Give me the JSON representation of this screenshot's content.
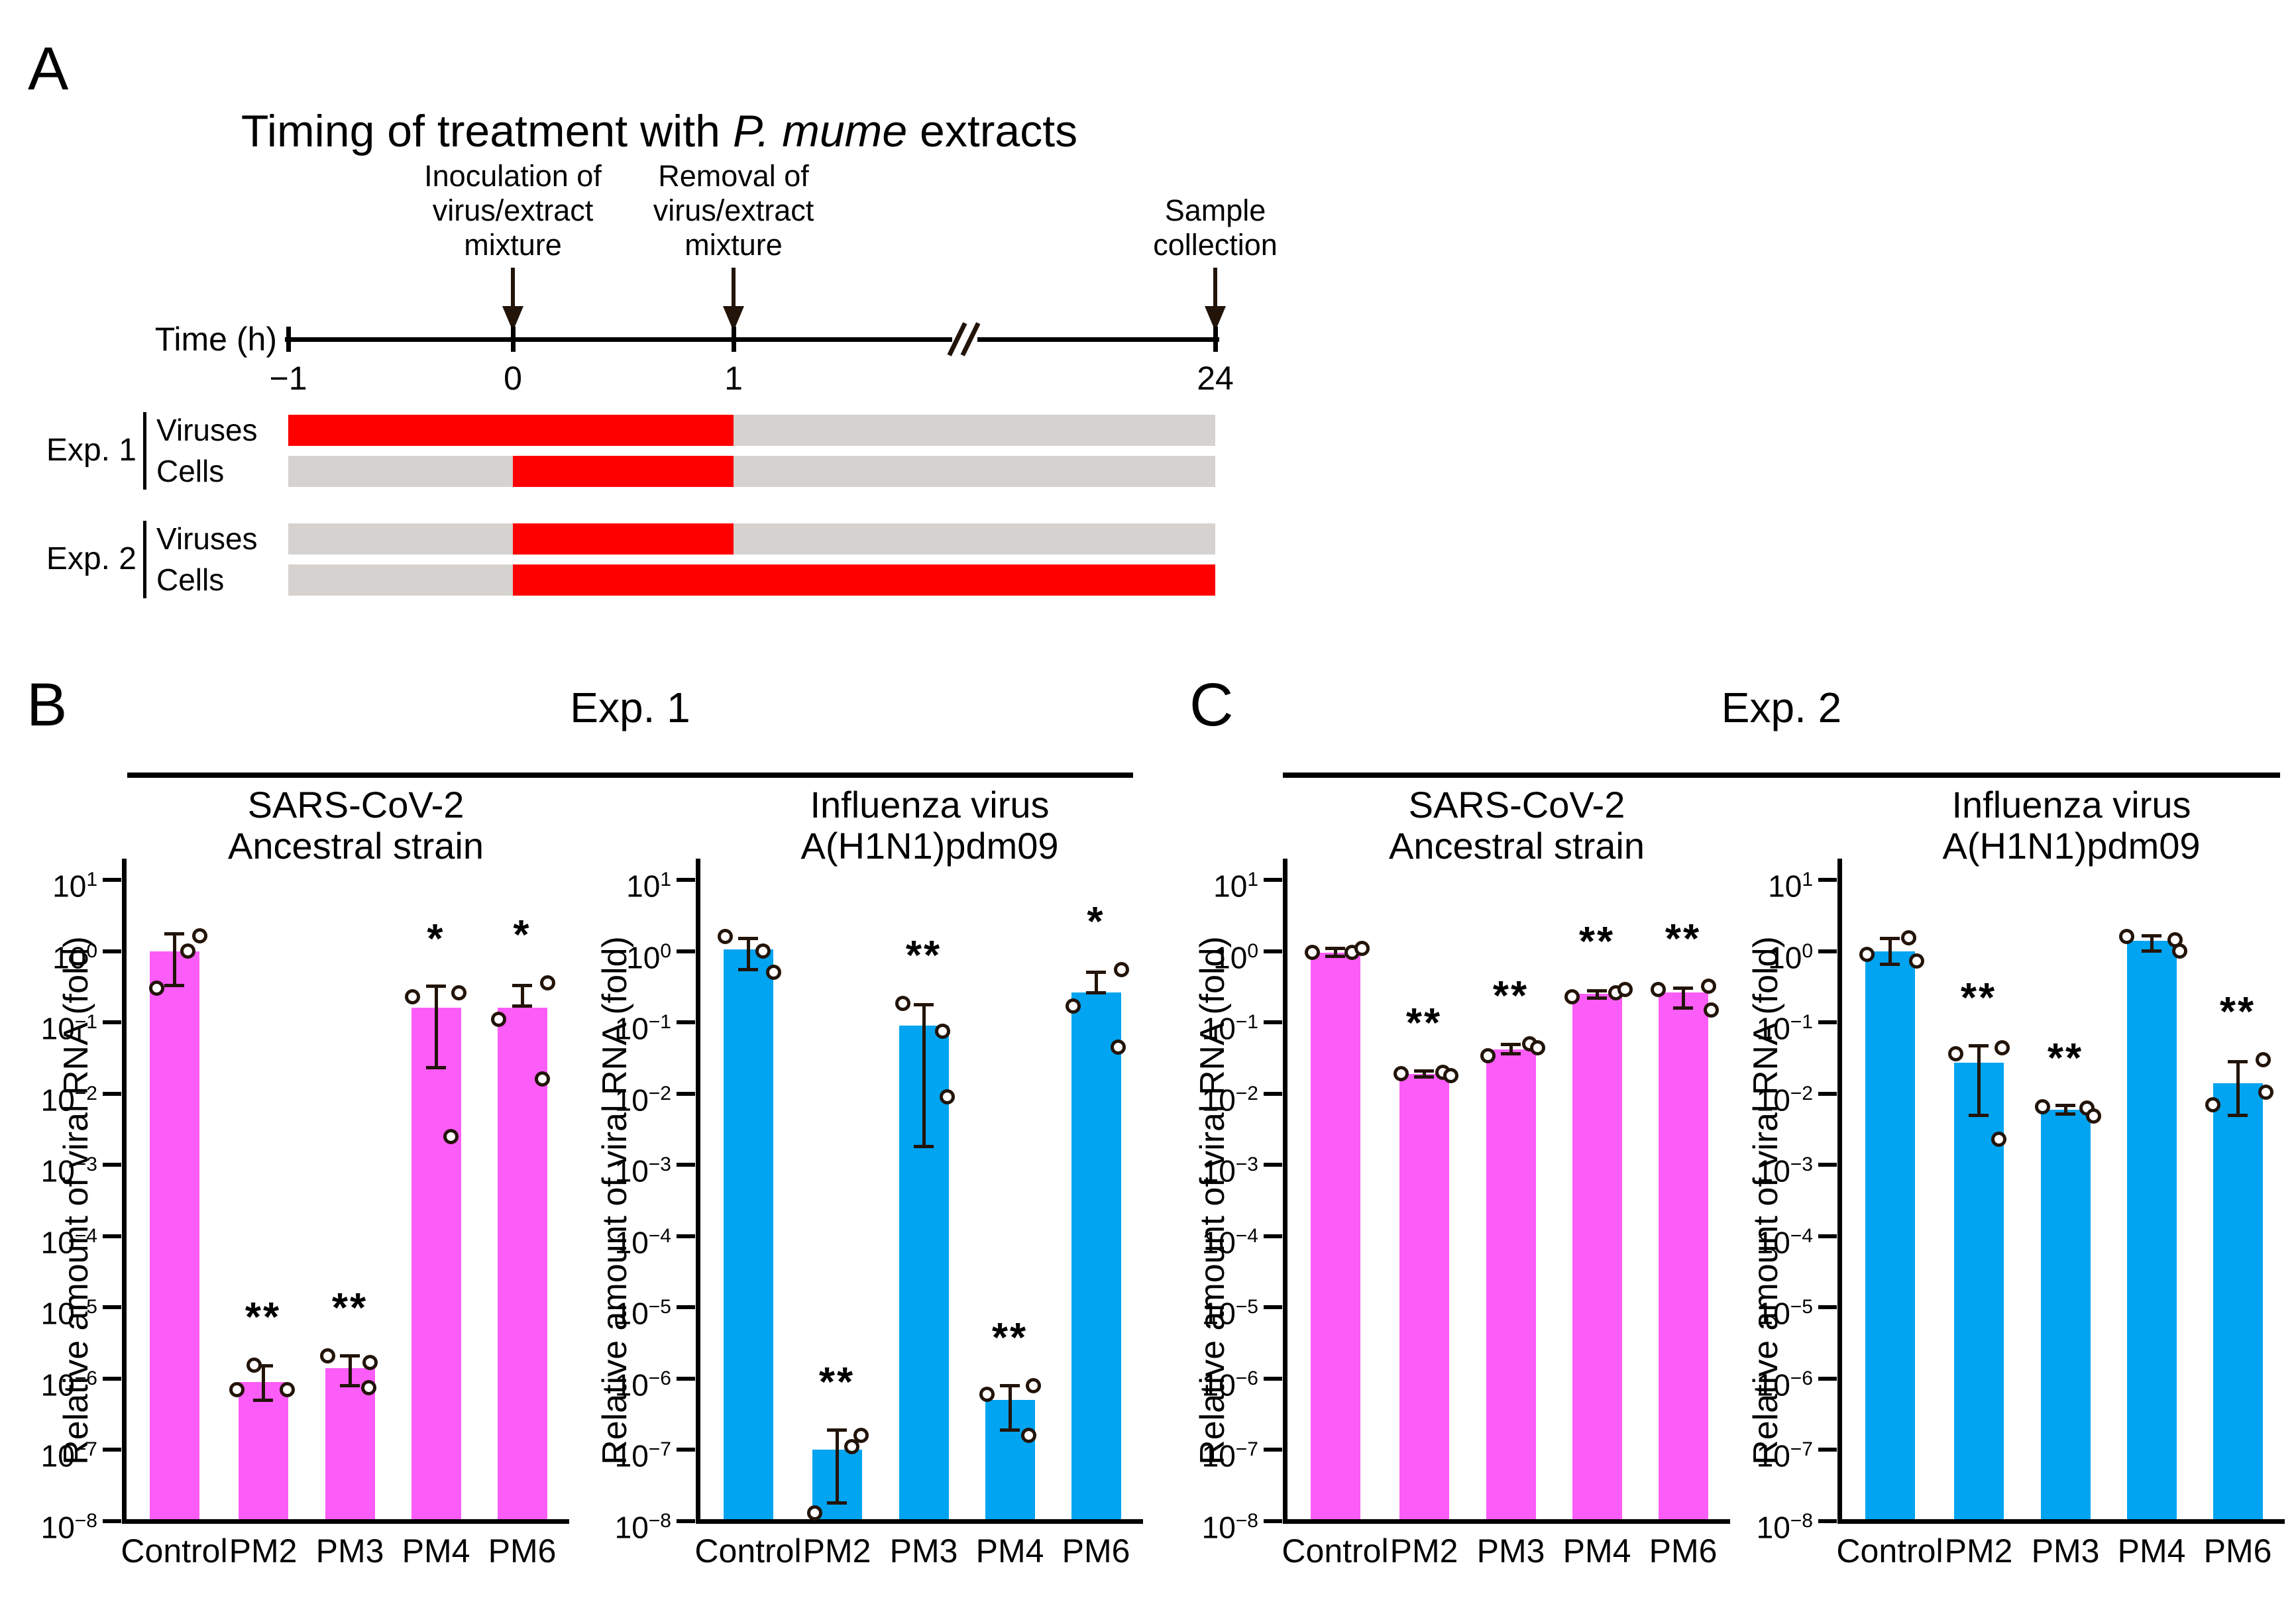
{
  "panelA": {
    "letter": "A",
    "title_prefix": "Timing of treatment with ",
    "title_italic": "P. mume",
    "title_suffix": " extracts",
    "axis_label": "Time (h)",
    "ticks": [
      {
        "label": "−1",
        "t": -1
      },
      {
        "label": "0",
        "t": 0
      },
      {
        "label": "1",
        "t": 1
      },
      {
        "label": "24",
        "t": 24
      }
    ],
    "annotations": [
      {
        "text": "Inoculation of\nvirus/extract\nmixture",
        "t": 0,
        "lines": 3
      },
      {
        "text": "Removal of\nvirus/extract\nmixture",
        "t": 1,
        "lines": 3
      },
      {
        "text": "Sample\ncollection",
        "t": 24,
        "lines": 2
      }
    ],
    "colors": {
      "treated": "#ff0000",
      "untreated": "#d5d2cf"
    },
    "groups": [
      {
        "label": "Exp. 1",
        "rows": [
          {
            "label": "Viruses",
            "segments": [
              {
                "from": -1,
                "to": 1,
                "state": "treated"
              },
              {
                "from": 1,
                "to": 24,
                "state": "untreated"
              }
            ]
          },
          {
            "label": "Cells",
            "segments": [
              {
                "from": -1,
                "to": 0,
                "state": "untreated"
              },
              {
                "from": 0,
                "to": 1,
                "state": "treated"
              },
              {
                "from": 1,
                "to": 24,
                "state": "untreated"
              }
            ]
          }
        ]
      },
      {
        "label": "Exp. 2",
        "rows": [
          {
            "label": "Viruses",
            "segments": [
              {
                "from": -1,
                "to": 0,
                "state": "untreated"
              },
              {
                "from": 0,
                "to": 1,
                "state": "treated"
              },
              {
                "from": 1,
                "to": 24,
                "state": "untreated"
              }
            ]
          },
          {
            "label": "Cells",
            "segments": [
              {
                "from": -1,
                "to": 0,
                "state": "untreated"
              },
              {
                "from": 0,
                "to": 24,
                "state": "treated"
              }
            ]
          }
        ]
      }
    ]
  },
  "panels": [
    {
      "letter": "B",
      "header": "Exp. 1"
    },
    {
      "letter": "C",
      "header": "Exp. 2"
    }
  ],
  "chart_data": [
    {
      "type": "bar",
      "panel": "B",
      "group": "Exp. 1",
      "title_lines": [
        "SARS-CoV-2",
        "Ancestral strain"
      ],
      "ylabel": "Relative amount of viral RNA (fold)",
      "yscale": "log",
      "ylim": [
        1e-08,
        10
      ],
      "y_tick_exponents": [
        1,
        0,
        -1,
        -2,
        -3,
        -4,
        -5,
        -6,
        -7,
        -8
      ],
      "bar_color": "#fc5cf8",
      "categories": [
        "Control",
        "PM2",
        "PM3",
        "PM4",
        "PM6"
      ],
      "bars": [
        {
          "label": "Control",
          "mean": 1.0,
          "err": [
            0.33,
            1.75
          ],
          "sig": "",
          "points": [
            {
              "dx": -27,
              "v": 0.3
            },
            {
              "dx": 20,
              "v": 1.0
            },
            {
              "dx": 38,
              "v": 1.65
            }
          ]
        },
        {
          "label": "PM2",
          "mean": 9e-07,
          "err": [
            5e-07,
            1.5e-06
          ],
          "sig": "**",
          "points": [
            {
              "dx": -14,
              "v": 1.55e-06
            },
            {
              "dx": -40,
              "v": 7e-07
            },
            {
              "dx": 36,
              "v": 7e-07
            }
          ]
        },
        {
          "label": "PM3",
          "mean": 1.4e-06,
          "err": [
            8e-07,
            2.1e-06
          ],
          "sig": "**",
          "points": [
            {
              "dx": -34,
              "v": 2.1e-06
            },
            {
              "dx": 30,
              "v": 1.7e-06
            },
            {
              "dx": 28,
              "v": 7.5e-07
            }
          ]
        },
        {
          "label": "PM4",
          "mean": 0.16,
          "err": [
            0.023,
            0.32
          ],
          "sig": "*",
          "points": [
            {
              "dx": -36,
              "v": 0.23
            },
            {
              "dx": 34,
              "v": 0.26
            },
            {
              "dx": 22,
              "v": 0.0025
            }
          ]
        },
        {
          "label": "PM6",
          "mean": 0.16,
          "err": [
            0.17,
            0.33
          ],
          "sig": "*",
          "points": [
            {
              "dx": -36,
              "v": 0.11
            },
            {
              "dx": 38,
              "v": 0.36
            },
            {
              "dx": 30,
              "v": 0.016
            }
          ]
        }
      ]
    },
    {
      "type": "bar",
      "panel": "B",
      "group": "Exp. 1",
      "title_lines": [
        "Influenza virus",
        "A(H1N1)pdm09"
      ],
      "ylabel": "Relative amount of viral RNA (fold)",
      "yscale": "log",
      "ylim": [
        1e-08,
        10
      ],
      "y_tick_exponents": [
        1,
        0,
        -1,
        -2,
        -3,
        -4,
        -5,
        -6,
        -7,
        -8
      ],
      "bar_color": "#00a4f0",
      "categories": [
        "Control",
        "PM2",
        "PM3",
        "PM4",
        "PM6"
      ],
      "bars": [
        {
          "label": "Control",
          "mean": 1.05,
          "err": [
            0.55,
            1.5
          ],
          "sig": "",
          "points": [
            {
              "dx": -35,
              "v": 1.6
            },
            {
              "dx": 22,
              "v": 1.0
            },
            {
              "dx": 38,
              "v": 0.5
            }
          ]
        },
        {
          "label": "PM2",
          "mean": 1e-07,
          "err": [
            1.8e-08,
            1.9e-07
          ],
          "sig": "**",
          "points": [
            {
              "dx": -34,
              "v": 1.3e-08
            },
            {
              "dx": 22,
              "v": 1.1e-07
            },
            {
              "dx": 36,
              "v": 1.6e-07
            }
          ]
        },
        {
          "label": "PM3",
          "mean": 0.09,
          "err": [
            0.0018,
            0.175
          ],
          "sig": "**",
          "points": [
            {
              "dx": -32,
              "v": 0.185
            },
            {
              "dx": 28,
              "v": 0.075
            },
            {
              "dx": 35,
              "v": 0.009
            }
          ]
        },
        {
          "label": "PM4",
          "mean": 5e-07,
          "err": [
            1.9e-07,
            8e-07
          ],
          "sig": "**",
          "points": [
            {
              "dx": -35,
              "v": 6e-07
            },
            {
              "dx": 35,
              "v": 8e-07
            },
            {
              "dx": 28,
              "v": 1.6e-07
            }
          ]
        },
        {
          "label": "PM6",
          "mean": 0.26,
          "err": [
            0.26,
            0.5
          ],
          "sig": "*",
          "points": [
            {
              "dx": -35,
              "v": 0.17
            },
            {
              "dx": 38,
              "v": 0.55
            },
            {
              "dx": 33,
              "v": 0.045
            }
          ]
        }
      ]
    },
    {
      "type": "bar",
      "panel": "C",
      "group": "Exp. 2",
      "title_lines": [
        "SARS-CoV-2",
        "Ancestral strain"
      ],
      "ylabel": "Relative amount of viral RNA (fold)",
      "yscale": "log",
      "ylim": [
        1e-08,
        10
      ],
      "y_tick_exponents": [
        1,
        0,
        -1,
        -2,
        -3,
        -4,
        -5,
        -6,
        -7,
        -8
      ],
      "bar_color": "#fc5cf8",
      "categories": [
        "Control",
        "PM2",
        "PM3",
        "PM4",
        "PM6"
      ],
      "bars": [
        {
          "label": "Control",
          "mean": 0.95,
          "err": [
            0.85,
            1.1
          ],
          "sig": "",
          "points": [
            {
              "dx": -35,
              "v": 0.95
            },
            {
              "dx": 25,
              "v": 0.95
            },
            {
              "dx": 40,
              "v": 1.1
            }
          ]
        },
        {
          "label": "PM2",
          "mean": 0.019,
          "err": [
            0.017,
            0.021
          ],
          "sig": "**",
          "points": [
            {
              "dx": -35,
              "v": 0.019
            },
            {
              "dx": 28,
              "v": 0.02
            },
            {
              "dx": 40,
              "v": 0.018
            }
          ]
        },
        {
          "label": "PM3",
          "mean": 0.042,
          "err": [
            0.036,
            0.049
          ],
          "sig": "**",
          "points": [
            {
              "dx": -35,
              "v": 0.034
            },
            {
              "dx": 28,
              "v": 0.05
            },
            {
              "dx": 40,
              "v": 0.044
            }
          ]
        },
        {
          "label": "PM4",
          "mean": 0.25,
          "err": [
            0.22,
            0.28
          ],
          "sig": "**",
          "points": [
            {
              "dx": -38,
              "v": 0.23
            },
            {
              "dx": 28,
              "v": 0.26
            },
            {
              "dx": 42,
              "v": 0.29
            }
          ]
        },
        {
          "label": "PM6",
          "mean": 0.26,
          "err": [
            0.16,
            0.3
          ],
          "sig": "**",
          "points": [
            {
              "dx": -38,
              "v": 0.29
            },
            {
              "dx": 38,
              "v": 0.32
            },
            {
              "dx": 42,
              "v": 0.15
            }
          ]
        }
      ]
    },
    {
      "type": "bar",
      "panel": "C",
      "group": "Exp. 2",
      "title_lines": [
        "Influenza virus",
        "A(H1N1)pdm09"
      ],
      "ylabel": "Relative amount of viral RNA (fold)",
      "yscale": "log",
      "ylim": [
        1e-08,
        10
      ],
      "y_tick_exponents": [
        1,
        0,
        -1,
        -2,
        -3,
        -4,
        -5,
        -6,
        -7,
        -8
      ],
      "bar_color": "#00a4f0",
      "categories": [
        "Control",
        "PM2",
        "PM3",
        "PM4",
        "PM6"
      ],
      "bars": [
        {
          "label": "Control",
          "mean": 1.0,
          "err": [
            0.65,
            1.5
          ],
          "sig": "",
          "points": [
            {
              "dx": -35,
              "v": 0.9
            },
            {
              "dx": 28,
              "v": 1.55
            },
            {
              "dx": 40,
              "v": 0.72
            }
          ]
        },
        {
          "label": "PM2",
          "mean": 0.027,
          "err": [
            0.005,
            0.047
          ],
          "sig": "**",
          "points": [
            {
              "dx": -35,
              "v": 0.036
            },
            {
              "dx": 35,
              "v": 0.044
            },
            {
              "dx": 30,
              "v": 0.0023
            }
          ]
        },
        {
          "label": "PM3",
          "mean": 0.006,
          "err": [
            0.0052,
            0.0068
          ],
          "sig": "**",
          "points": [
            {
              "dx": -35,
              "v": 0.0066
            },
            {
              "dx": 32,
              "v": 0.0062
            },
            {
              "dx": 42,
              "v": 0.0048
            }
          ]
        },
        {
          "label": "PM4",
          "mean": 1.4,
          "err": [
            1.0,
            1.65
          ],
          "sig": "",
          "points": [
            {
              "dx": -38,
              "v": 1.6
            },
            {
              "dx": 35,
              "v": 1.45
            },
            {
              "dx": 42,
              "v": 1.0
            }
          ]
        },
        {
          "label": "PM6",
          "mean": 0.014,
          "err": [
            0.005,
            0.028
          ],
          "sig": "**",
          "points": [
            {
              "dx": -38,
              "v": 0.007
            },
            {
              "dx": 38,
              "v": 0.03
            },
            {
              "dx": 42,
              "v": 0.0105
            }
          ]
        }
      ]
    }
  ]
}
